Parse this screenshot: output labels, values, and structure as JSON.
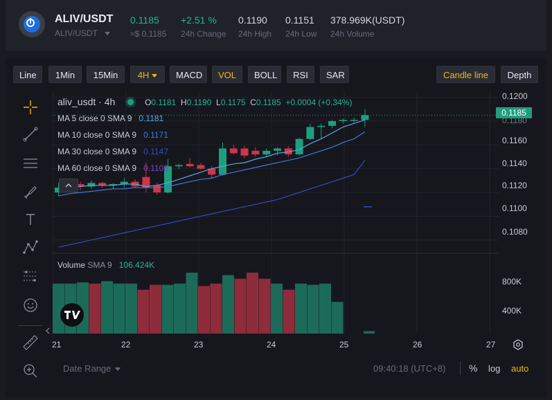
{
  "ticker": {
    "pair": "ALIV/USDT",
    "sub_pair": "ALIV/USDT",
    "last_price": "0.1185",
    "last_price_fiat": "≈$ 0.1185",
    "change_value": "+2.51 %",
    "change_label": "24h Change",
    "high_value": "0.1190",
    "high_label": "24h High",
    "low_value": "0.1151",
    "low_label": "24h Low",
    "volume_value": "378.969K(USDT)",
    "volume_label": "24h Volume"
  },
  "toolbar": {
    "line": "Line",
    "min1": "1Min",
    "min15": "15Min",
    "h4": "4H",
    "macd": "MACD",
    "vol": "VOL",
    "boll": "BOLL",
    "rsi": "RSI",
    "sar": "SAR",
    "candle_line": "Candle line",
    "depth": "Depth"
  },
  "legend": {
    "symbol": "aliv_usdt · 4h",
    "o_label": "O",
    "o_value": "0.1181",
    "h_label": "H",
    "h_value": "0.1190",
    "l_label": "L",
    "l_value": "0.1175",
    "c_label": "C",
    "c_value": "0.1185",
    "change": "+0.0004 (+0.34%)",
    "ma5_label": "MA 5 close 0 SMA 9",
    "ma5_value": "0.1181",
    "ma10_label": "MA 10 close 0 SMA 9",
    "ma10_value": "0.1171",
    "ma30_label": "MA 30 close 0 SMA 9",
    "ma30_value": "0.1147",
    "ma60_label": "MA 60 close 0 SMA 9",
    "ma60_value": "0.1108",
    "volume_label": "Volume",
    "volume_sma": "SMA 9",
    "volume_value": "106.424K"
  },
  "price_axis": {
    "ticks": [
      "0.1200",
      "0.1180",
      "0.1160",
      "0.1140",
      "0.1120",
      "0.1100",
      "0.1080"
    ],
    "current": "0.1185"
  },
  "volume_axis": {
    "ticks": [
      "800K",
      "400K"
    ]
  },
  "time_axis": {
    "ticks": [
      "21",
      "22",
      "23",
      "24",
      "25",
      "26",
      "27"
    ]
  },
  "bottom": {
    "date_range": "Date Range",
    "clock": "09:40:18 (UTC+8)",
    "percent": "%",
    "log": "log",
    "auto": "auto"
  },
  "colors": {
    "up": "#1f9e7d",
    "down": "#d1344b",
    "accent": "#f0b90b",
    "ma5": "#5aa6e3",
    "ma10": "#3f7ae0",
    "ma30": "#3848c8"
  },
  "chart_data": {
    "type": "candlestick",
    "interval": "4h",
    "x": [
      "21",
      "22",
      "23",
      "24",
      "25",
      "26",
      "27"
    ],
    "ylim": [
      0.107,
      0.1205
    ],
    "candles": [
      {
        "o": 0.112,
        "h": 0.1128,
        "l": 0.1117,
        "c": 0.1124
      },
      {
        "o": 0.1124,
        "h": 0.113,
        "l": 0.1121,
        "c": 0.1127
      },
      {
        "o": 0.1127,
        "h": 0.1129,
        "l": 0.1122,
        "c": 0.1125
      },
      {
        "o": 0.1125,
        "h": 0.113,
        "l": 0.1123,
        "c": 0.1128
      },
      {
        "o": 0.1128,
        "h": 0.1129,
        "l": 0.1124,
        "c": 0.1126
      },
      {
        "o": 0.1126,
        "h": 0.1128,
        "l": 0.1123,
        "c": 0.1127
      },
      {
        "o": 0.1127,
        "h": 0.1132,
        "l": 0.1124,
        "c": 0.1129
      },
      {
        "o": 0.1129,
        "h": 0.1131,
        "l": 0.1124,
        "c": 0.1125
      },
      {
        "o": 0.1133,
        "h": 0.1145,
        "l": 0.112,
        "c": 0.1124
      },
      {
        "o": 0.1126,
        "h": 0.1128,
        "l": 0.1118,
        "c": 0.112
      },
      {
        "o": 0.112,
        "h": 0.1148,
        "l": 0.1119,
        "c": 0.1142
      },
      {
        "o": 0.1142,
        "h": 0.1144,
        "l": 0.114,
        "c": 0.1143
      },
      {
        "o": 0.1144,
        "h": 0.1149,
        "l": 0.1141,
        "c": 0.1142
      },
      {
        "o": 0.1143,
        "h": 0.1145,
        "l": 0.1139,
        "c": 0.114
      },
      {
        "o": 0.114,
        "h": 0.1142,
        "l": 0.1132,
        "c": 0.1135
      },
      {
        "o": 0.1135,
        "h": 0.1162,
        "l": 0.1134,
        "c": 0.1157
      },
      {
        "o": 0.1157,
        "h": 0.116,
        "l": 0.1152,
        "c": 0.1153
      },
      {
        "o": 0.1157,
        "h": 0.1159,
        "l": 0.1149,
        "c": 0.1151
      },
      {
        "o": 0.1155,
        "h": 0.1158,
        "l": 0.115,
        "c": 0.1152
      },
      {
        "o": 0.1152,
        "h": 0.1157,
        "l": 0.115,
        "c": 0.1155
      },
      {
        "o": 0.1155,
        "h": 0.1158,
        "l": 0.1151,
        "c": 0.1157
      },
      {
        "o": 0.1157,
        "h": 0.1159,
        "l": 0.115,
        "c": 0.1152
      },
      {
        "o": 0.1152,
        "h": 0.1166,
        "l": 0.1151,
        "c": 0.1165
      },
      {
        "o": 0.1165,
        "h": 0.1178,
        "l": 0.1164,
        "c": 0.1175
      },
      {
        "o": 0.1175,
        "h": 0.1178,
        "l": 0.1165,
        "c": 0.1176
      },
      {
        "o": 0.1176,
        "h": 0.1181,
        "l": 0.1174,
        "c": 0.118
      },
      {
        "o": 0.118,
        "h": 0.1182,
        "l": 0.1178,
        "c": 0.1181
      },
      {
        "o": 0.1181,
        "h": 0.1183,
        "l": 0.1179,
        "c": 0.1181
      },
      {
        "o": 0.1181,
        "h": 0.119,
        "l": 0.1175,
        "c": 0.1185
      }
    ],
    "volume_ylim": [
      0,
      1250000
    ],
    "volume_up": [
      820000,
      820000,
      840000,
      860000,
      820000,
      820000,
      800000,
      820000,
      1000000,
      960000,
      820000,
      820000,
      800000,
      820000,
      520000,
      40000
    ],
    "volume_down": [
      820000,
      720000,
      800000,
      780000,
      820000,
      900000,
      1000000,
      900000,
      720000
    ],
    "ma5": [
      0.1122,
      0.1124,
      0.1125,
      0.1126,
      0.1126,
      0.1126,
      0.1127,
      0.1127,
      0.1125,
      0.1126,
      0.1128,
      0.1131,
      0.1134,
      0.1137,
      0.114,
      0.1142,
      0.1144,
      0.1145,
      0.1148,
      0.115,
      0.1153,
      0.1154,
      0.1156,
      0.1161,
      0.1165,
      0.117,
      0.1175,
      0.1178,
      0.1181
    ],
    "ma10": [
      0.1117,
      0.1119,
      0.112,
      0.1121,
      0.1122,
      0.1123,
      0.1123,
      0.1124,
      0.1124,
      0.1124,
      0.1125,
      0.1127,
      0.1129,
      0.1131,
      0.1132,
      0.1135,
      0.1137,
      0.1139,
      0.1141,
      0.1143,
      0.1145,
      0.1147,
      0.1149,
      0.1152,
      0.1155,
      0.1158,
      0.1162,
      0.1165,
      0.1171
    ],
    "ma30": [
      0.1074,
      0.1076,
      0.1078,
      0.108,
      0.1082,
      0.1084,
      0.1086,
      0.1088,
      0.109,
      0.1092,
      0.1094,
      0.1096,
      0.1098,
      0.11,
      0.1102,
      0.1104,
      0.1106,
      0.1108,
      0.111,
      0.1112,
      0.1114,
      0.1117,
      0.112,
      0.1123,
      0.1126,
      0.1129,
      0.1132,
      0.1135,
      0.1147
    ]
  }
}
